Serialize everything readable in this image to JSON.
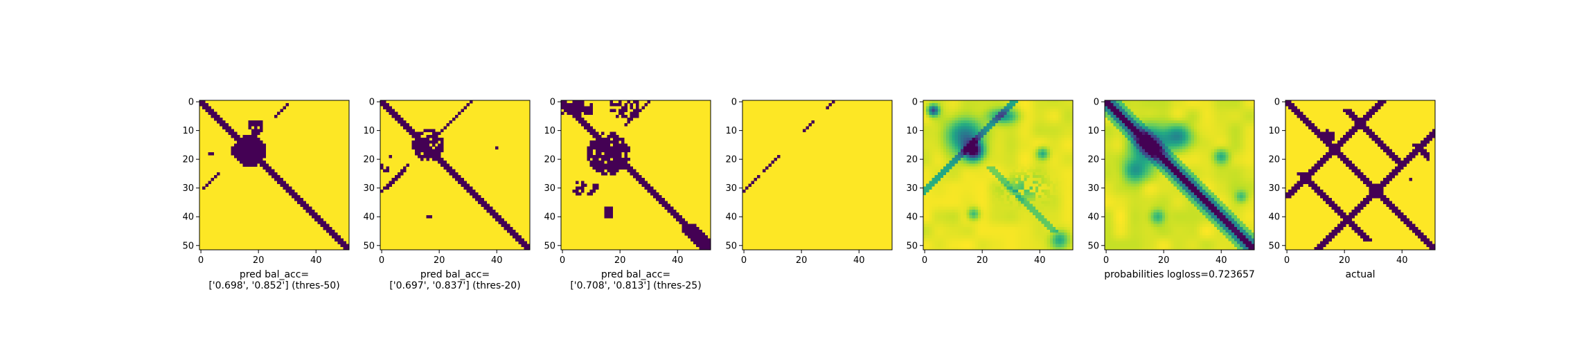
{
  "figure": {
    "colors": {
      "low": "#440154",
      "high": "#fde725"
    }
  },
  "chart_data": [
    {
      "type": "heatmap",
      "kind": "binary",
      "pattern": "pred50",
      "xlabel_lines": [
        "pred bal_acc=",
        "['0.698', '0.852'] (thres-50)"
      ],
      "xticks": [
        0,
        20,
        40
      ],
      "yticks": [
        0,
        10,
        20,
        30,
        40,
        50
      ],
      "matrix_size": 52
    },
    {
      "type": "heatmap",
      "kind": "binary",
      "pattern": "pred20",
      "xlabel_lines": [
        "pred bal_acc=",
        "['0.697', '0.837'] (thres-20)"
      ],
      "xticks": [
        0,
        20,
        40
      ],
      "yticks": [
        0,
        10,
        20,
        30,
        40,
        50
      ],
      "matrix_size": 52
    },
    {
      "type": "heatmap",
      "kind": "binary",
      "pattern": "pred25",
      "xlabel_lines": [
        "pred bal_acc=",
        "['0.708', '0.813'] (thres-25)"
      ],
      "xticks": [
        0,
        20,
        40
      ],
      "yticks": [
        0,
        10,
        20,
        30,
        40,
        50
      ],
      "matrix_size": 52
    },
    {
      "type": "heatmap",
      "kind": "binary",
      "pattern": "sparse",
      "xlabel_lines": [],
      "xticks": [
        0,
        20,
        40
      ],
      "yticks": [
        0,
        10,
        20,
        30,
        40,
        50
      ],
      "matrix_size": 52
    },
    {
      "type": "heatmap",
      "kind": "continuous",
      "pattern": "probs1",
      "xlabel_lines": [],
      "xticks": [
        0,
        20,
        40
      ],
      "yticks": [
        0,
        10,
        20,
        30,
        40,
        50
      ],
      "matrix_size": 52
    },
    {
      "type": "heatmap",
      "kind": "continuous",
      "pattern": "probs2",
      "xlabel_lines": [
        "probabilities logloss=0.723657"
      ],
      "xticks": [
        0,
        20,
        40
      ],
      "yticks": [
        0,
        10,
        20,
        30,
        40,
        50
      ],
      "matrix_size": 52
    },
    {
      "type": "heatmap",
      "kind": "binary",
      "pattern": "actual",
      "xlabel_lines": [
        "actual"
      ],
      "xticks": [
        0,
        20,
        40
      ],
      "yticks": [
        0,
        10,
        20,
        30,
        40,
        50
      ],
      "matrix_size": 52
    }
  ]
}
